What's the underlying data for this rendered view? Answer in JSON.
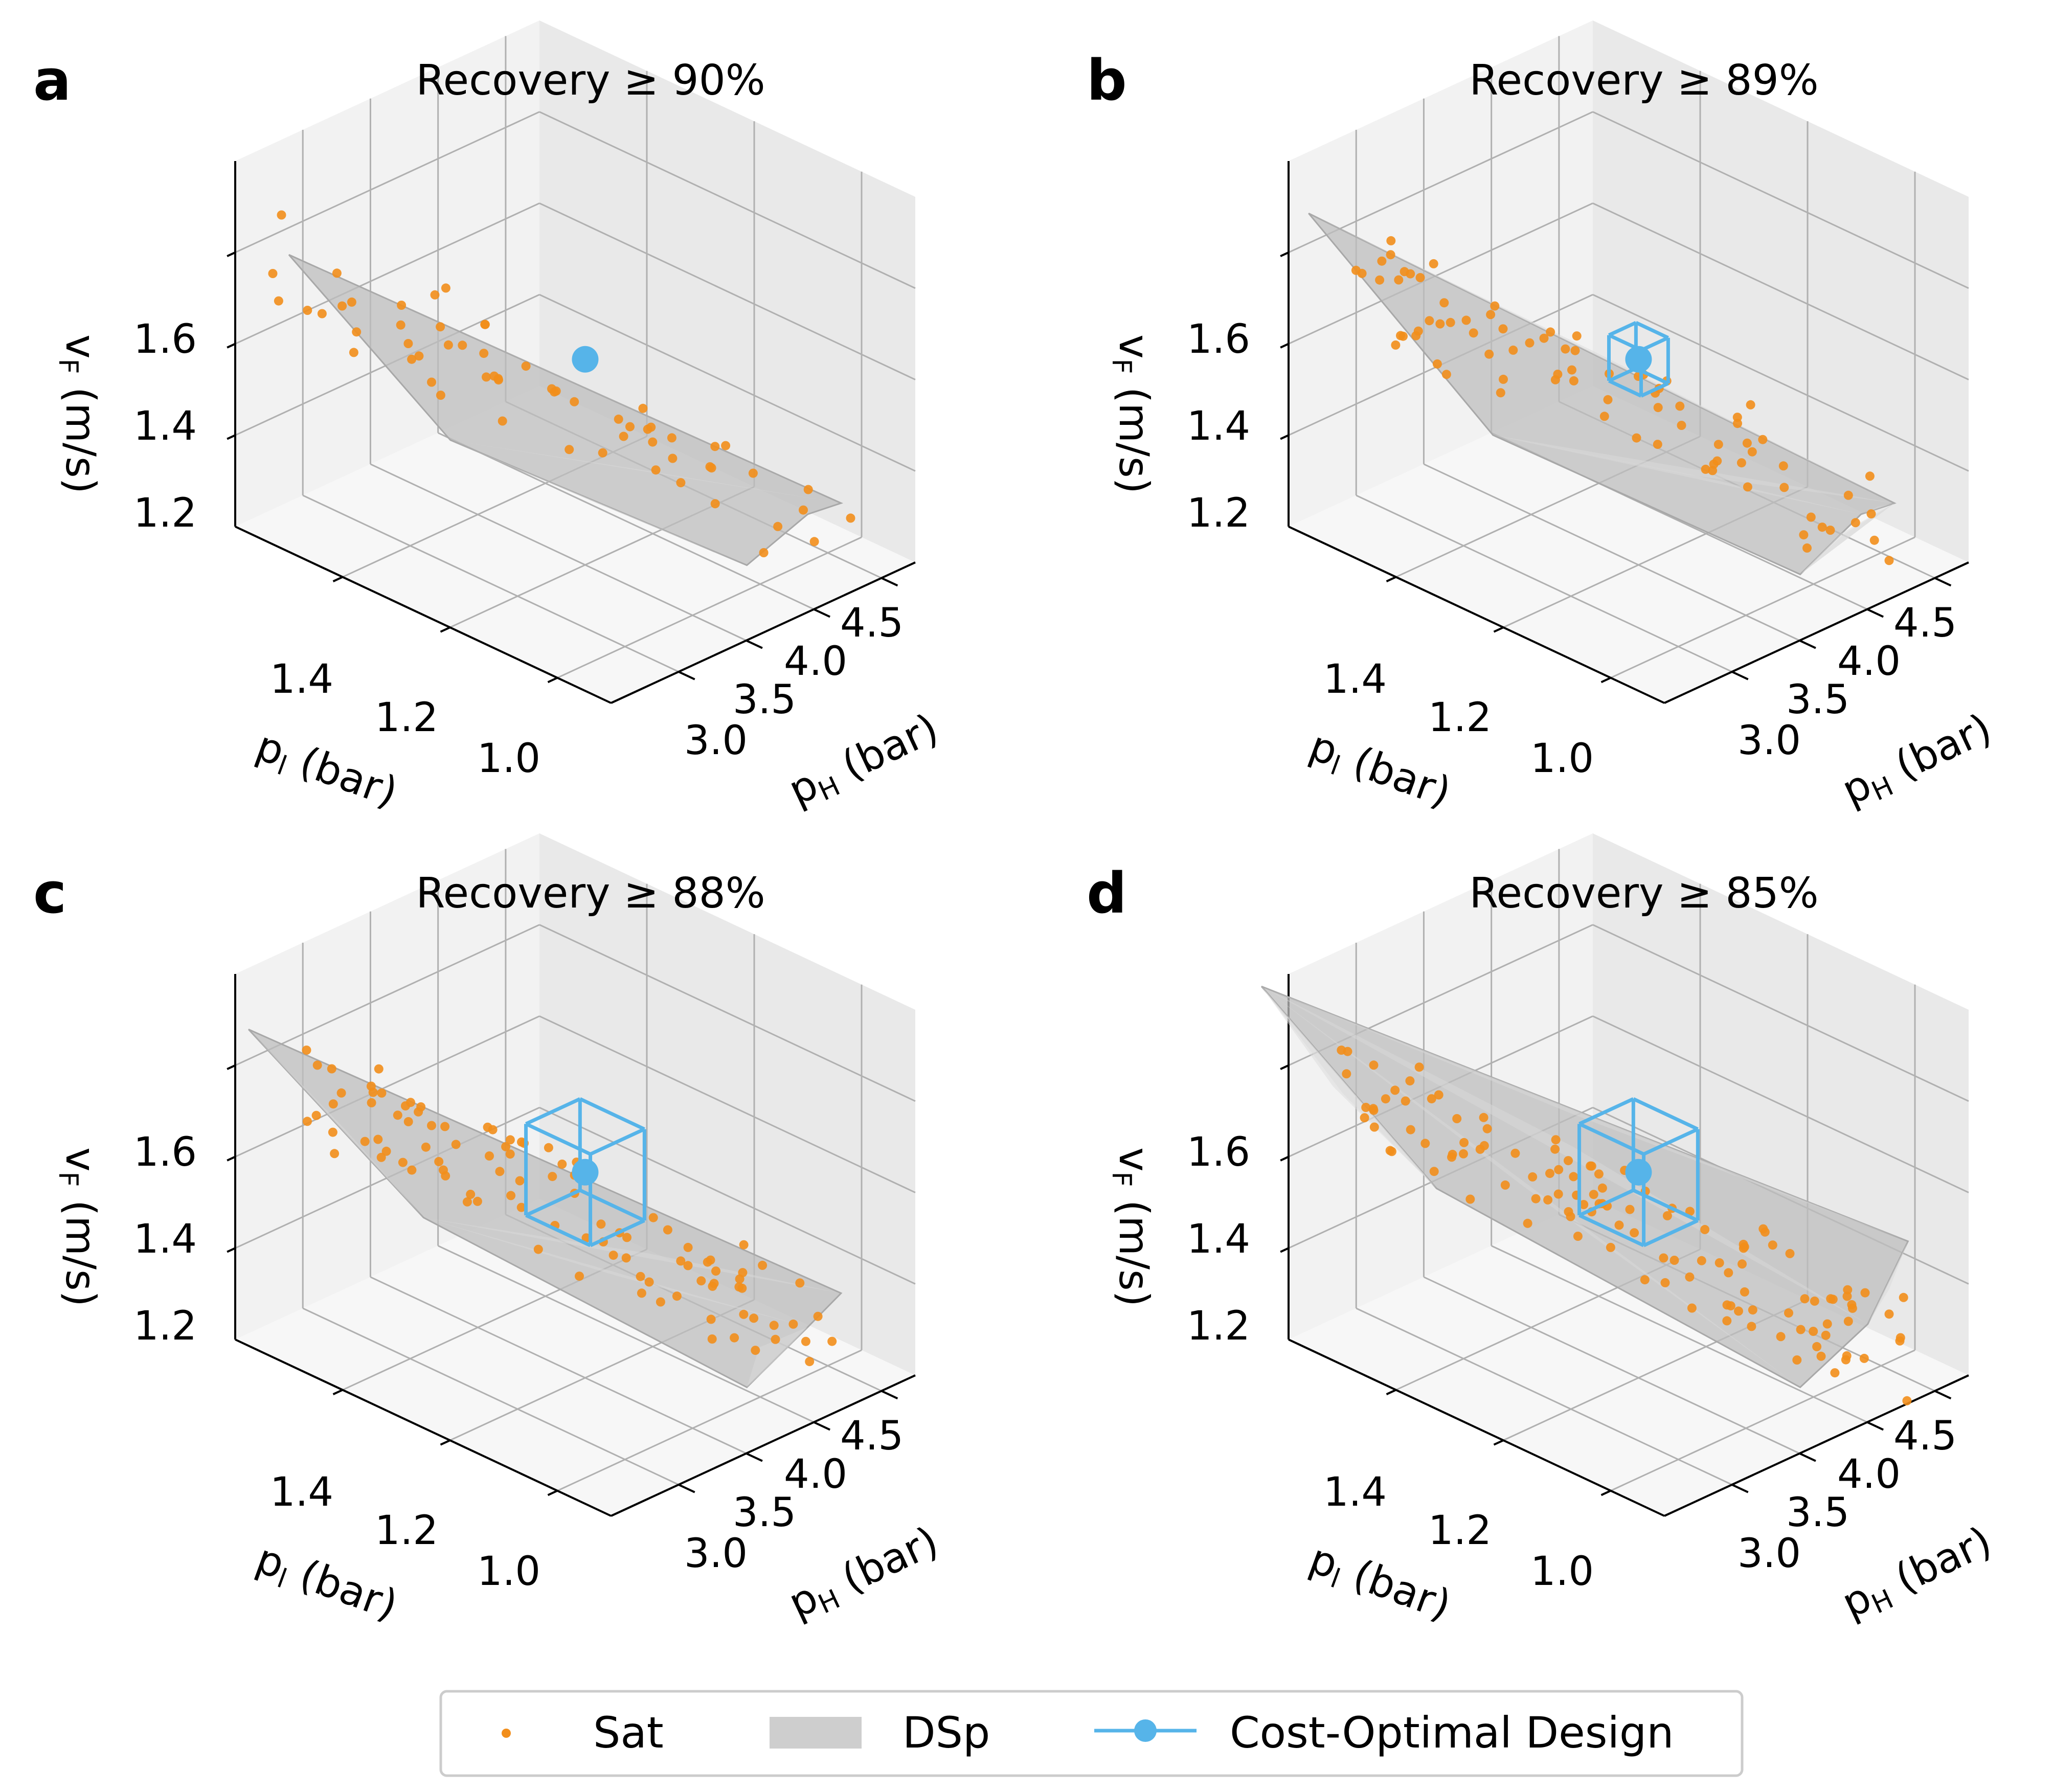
{
  "colors": {
    "sat": "#f28e1b",
    "dsp": "#bdbdbd",
    "optimal": "#56b4e9",
    "pane_back": "#f2f2f2",
    "pane_side": "#e9e9e9",
    "pane_floor": "#f7f7f7",
    "grid": "#b0b0b0"
  },
  "legend": {
    "sat": "Sat",
    "dsp": "DSp",
    "optimal": "Cost-Optimal Design"
  },
  "chart_data": [
    {
      "panel": "a",
      "type": "scatter3d",
      "title": "Recovery ≥ 90%",
      "xlabel": "p_H (bar)",
      "ylabel": "p_l (bar)",
      "zlabel": "v_F (m/s)",
      "xlim": [
        2.5,
        4.75
      ],
      "ylim": [
        0.9,
        1.6
      ],
      "zlim": [
        1.0,
        1.8
      ],
      "xticks": [
        "3.0",
        "3.5",
        "4.0",
        "4.5"
      ],
      "yticks": [
        "1.0",
        "1.2",
        "1.4"
      ],
      "zticks": [
        "1.2",
        "1.4",
        "1.6"
      ],
      "optimal": {
        "pH": 3.5,
        "pl": 1.2,
        "vF": 1.45
      },
      "box_half": [
        0,
        0,
        0
      ],
      "hull": [
        [
          2.5,
          1.5,
          1.65
        ],
        [
          4.4,
          0.95,
          1.15
        ],
        [
          4.55,
          1.05,
          1.05
        ],
        [
          4.1,
          1.05,
          1.0
        ],
        [
          2.9,
          1.3,
          1.3
        ]
      ],
      "sat_count": 60,
      "seed": 11
    },
    {
      "panel": "b",
      "type": "scatter3d",
      "title": "Recovery ≥ 89%",
      "xlabel": "p_H (bar)",
      "ylabel": "p_l (bar)",
      "zlabel": "v_F (m/s)",
      "xlim": [
        2.5,
        4.75
      ],
      "ylim": [
        0.9,
        1.6
      ],
      "zlim": [
        1.0,
        1.8
      ],
      "xticks": [
        "3.0",
        "3.5",
        "4.0",
        "4.5"
      ],
      "yticks": [
        "1.0",
        "1.2",
        "1.4"
      ],
      "zticks": [
        "1.2",
        "1.4",
        "1.6"
      ],
      "optimal": {
        "pH": 3.5,
        "pl": 1.2,
        "vF": 1.45
      },
      "box_half": [
        0.1,
        0.03,
        0.05
      ],
      "hull": [
        [
          2.45,
          1.55,
          1.72
        ],
        [
          4.4,
          0.95,
          1.15
        ],
        [
          4.55,
          1.05,
          1.05
        ],
        [
          4.1,
          1.05,
          0.98
        ],
        [
          2.9,
          1.32,
          1.3
        ]
      ],
      "sat_count": 80,
      "seed": 23
    },
    {
      "panel": "c",
      "type": "scatter3d",
      "title": "Recovery ≥ 88%",
      "xlabel": "p_H (bar)",
      "ylabel": "p_l (bar)",
      "zlabel": "v_F (m/s)",
      "xlim": [
        2.5,
        4.75
      ],
      "ylim": [
        0.9,
        1.6
      ],
      "zlim": [
        1.0,
        1.8
      ],
      "xticks": [
        "3.0",
        "3.5",
        "4.0",
        "4.5"
      ],
      "yticks": [
        "1.0",
        "1.2",
        "1.4"
      ],
      "zticks": [
        "1.2",
        "1.4",
        "1.6"
      ],
      "optimal": {
        "pH": 3.5,
        "pl": 1.2,
        "vF": 1.45
      },
      "box_half": [
        0.2,
        0.06,
        0.1
      ],
      "hull": [
        [
          2.4,
          1.55,
          1.72
        ],
        [
          4.4,
          0.95,
          1.2
        ],
        [
          4.55,
          1.05,
          1.05
        ],
        [
          4.1,
          1.05,
          0.98
        ],
        [
          2.9,
          1.35,
          1.35
        ]
      ],
      "sat_count": 100,
      "seed": 37
    },
    {
      "panel": "d",
      "type": "scatter3d",
      "title": "Recovery ≥ 85%",
      "xlabel": "p_H (bar)",
      "ylabel": "p_l (bar)",
      "zlabel": "v_F (m/s)",
      "xlim": [
        2.5,
        4.75
      ],
      "ylim": [
        0.9,
        1.6
      ],
      "zlim": [
        1.0,
        1.8
      ],
      "xticks": [
        "3.0",
        "3.5",
        "4.0",
        "4.5"
      ],
      "yticks": [
        "1.0",
        "1.2",
        "1.4"
      ],
      "zticks": [
        "1.2",
        "1.4",
        "1.6"
      ],
      "optimal": {
        "pH": 3.5,
        "pl": 1.2,
        "vF": 1.45
      },
      "box_half": [
        0.2,
        0.06,
        0.1
      ],
      "hull": [
        [
          2.3,
          1.6,
          1.8
        ],
        [
          4.5,
          0.95,
          1.3
        ],
        [
          4.6,
          1.05,
          1.05
        ],
        [
          4.1,
          1.05,
          0.98
        ],
        [
          2.8,
          1.4,
          1.4
        ]
      ],
      "sat_count": 120,
      "seed": 51
    }
  ]
}
